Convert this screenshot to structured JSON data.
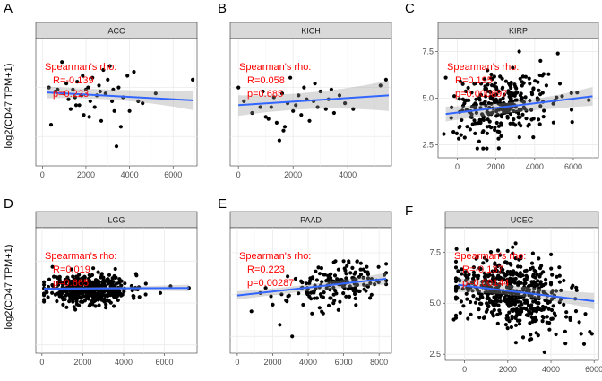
{
  "y_axis_label": "log2(CD47 TPM+1)",
  "colors": {
    "point": "#000000",
    "fit_line": "#3366ff",
    "ci_band": "#999999",
    "annotation": "#ff0000",
    "strip_fill": "#d9d9d9",
    "gridline": "#ebebeb"
  },
  "chart_data": [
    {
      "type": "scatter",
      "letter": "A",
      "title": "ACC",
      "xlim": [
        -300,
        7100
      ],
      "ylim": [
        1.0,
        7.5
      ],
      "x_ticks": [
        0,
        2000,
        4000,
        6000
      ],
      "y_ticks": [],
      "annotation": [
        "Spearman's rho:",
        "R=-0.139",
        "p=0.223"
      ],
      "fit": {
        "x0": 200,
        "y0": 4.75,
        "x1": 6900,
        "y1": 4.35
      },
      "ci": {
        "lower0": 4.45,
        "upper0": 5.05,
        "lowerm": 4.55,
        "upperm": 4.8,
        "lower1": 3.85,
        "upper1": 4.85
      },
      "points": [
        [
          300,
          5.0
        ],
        [
          400,
          3.1
        ],
        [
          600,
          4.8
        ],
        [
          700,
          4.9
        ],
        [
          900,
          6.3
        ],
        [
          1000,
          4.7
        ],
        [
          1100,
          5.2
        ],
        [
          1200,
          4.4
        ],
        [
          1300,
          3.9
        ],
        [
          1400,
          4.9
        ],
        [
          1500,
          4.5
        ],
        [
          1600,
          5.3
        ],
        [
          1700,
          4.1
        ],
        [
          1800,
          4.6
        ],
        [
          1900,
          3.6
        ],
        [
          2000,
          4.9
        ],
        [
          2100,
          5.0
        ],
        [
          2200,
          4.3
        ],
        [
          2300,
          5.5
        ],
        [
          2400,
          4.0
        ],
        [
          2500,
          4.6
        ],
        [
          2600,
          5.1
        ],
        [
          2700,
          3.3
        ],
        [
          2800,
          5.9
        ],
        [
          2900,
          4.7
        ],
        [
          3000,
          5.4
        ],
        [
          3100,
          6.1
        ],
        [
          3200,
          4.3
        ],
        [
          3300,
          3.8
        ],
        [
          3400,
          2.0
        ],
        [
          3500,
          5.0
        ],
        [
          3600,
          3.0
        ],
        [
          3700,
          4.5
        ],
        [
          3900,
          5.6
        ],
        [
          4000,
          3.8
        ],
        [
          4200,
          5.8
        ],
        [
          4400,
          4.3
        ],
        [
          4600,
          4.2
        ],
        [
          5200,
          4.7
        ],
        [
          6900,
          5.4
        ],
        [
          1550,
          4.1
        ],
        [
          2150,
          3.5
        ],
        [
          2650,
          4.8
        ],
        [
          1850,
          5.6
        ],
        [
          3250,
          4.9
        ]
      ]
    },
    {
      "type": "scatter",
      "letter": "B",
      "title": "KICH",
      "xlim": [
        -300,
        5600
      ],
      "ylim": [
        1.0,
        7.5
      ],
      "x_ticks": [
        0,
        2000,
        4000
      ],
      "y_ticks": [],
      "annotation": [
        "Spearman's rho:",
        "R=0.058",
        "p=0.685"
      ],
      "fit": {
        "x0": 0,
        "y0": 4.1,
        "x1": 5500,
        "y1": 4.6
      },
      "ci": {
        "lower0": 3.55,
        "upper0": 4.6,
        "lowerm": 4.15,
        "upperm": 4.55,
        "lower1": 3.8,
        "upper1": 5.35
      },
      "points": [
        [
          0,
          5.0
        ],
        [
          200,
          4.3
        ],
        [
          500,
          3.7
        ],
        [
          800,
          4.0
        ],
        [
          900,
          4.8
        ],
        [
          1000,
          3.5
        ],
        [
          1100,
          3.4
        ],
        [
          1200,
          4.0
        ],
        [
          1300,
          4.5
        ],
        [
          1400,
          3.2
        ],
        [
          1500,
          2.3
        ],
        [
          1600,
          4.7
        ],
        [
          1700,
          3.0
        ],
        [
          1800,
          4.2
        ],
        [
          1900,
          5.5
        ],
        [
          2000,
          3.8
        ],
        [
          2100,
          4.1
        ],
        [
          2200,
          4.6
        ],
        [
          2300,
          3.6
        ],
        [
          2400,
          5.0
        ],
        [
          2500,
          4.4
        ],
        [
          2600,
          3.3
        ],
        [
          2800,
          5.2
        ],
        [
          2900,
          4.0
        ],
        [
          3000,
          4.8
        ],
        [
          3200,
          3.9
        ],
        [
          3300,
          4.4
        ],
        [
          3400,
          4.9
        ],
        [
          3500,
          3.7
        ],
        [
          3700,
          4.6
        ],
        [
          3900,
          4.2
        ],
        [
          4200,
          3.9
        ],
        [
          5200,
          5.1
        ],
        [
          5400,
          5.4
        ],
        [
          1650,
          2.8
        ],
        [
          2750,
          4.3
        ]
      ]
    },
    {
      "type": "scatter",
      "letter": "C",
      "title": "KIRP",
      "xlim": [
        -1000,
        7300
      ],
      "ylim": [
        1.8,
        8.2
      ],
      "x_ticks": [
        0,
        2000,
        4000,
        6000
      ],
      "y_ticks": [
        2.5,
        5.0,
        7.5
      ],
      "annotation": [
        "Spearman's rho:",
        "R=0.195",
        "p=0.000897"
      ],
      "fit": {
        "x0": -600,
        "y0": 4.15,
        "x1": 7000,
        "y1": 5.1
      },
      "ci": {
        "lower0": 3.75,
        "upper0": 4.55,
        "lowerm": 4.35,
        "upperm": 4.6,
        "lower1": 4.6,
        "upper1": 5.6
      },
      "cloud": {
        "n": 290,
        "seed": 7,
        "x_mean": 2200,
        "x_sd": 1200,
        "x_min": -700,
        "x_max": 6800,
        "y_base": 4.3,
        "y_slope": 0.00012,
        "y_sd": 0.85,
        "y_min": 2.3,
        "y_max": 7.6
      },
      "points": [
        [
          -600,
          6.1
        ],
        [
          5200,
          7.4
        ],
        [
          6800,
          4.9
        ],
        [
          4300,
          7.0
        ],
        [
          3200,
          7.5
        ],
        [
          -300,
          4.5
        ],
        [
          6200,
          5.3
        ]
      ]
    },
    {
      "type": "scatter",
      "letter": "D",
      "title": "LGG",
      "xlim": [
        -300,
        7600
      ],
      "ylim": [
        2.0,
        9.5
      ],
      "x_ticks": [
        0,
        2000,
        4000,
        6000
      ],
      "y_ticks": [],
      "annotation": [
        "Spearman's rho:",
        "R=0.019",
        "p=0.665"
      ],
      "fit": {
        "x0": 100,
        "y0": 5.85,
        "x1": 7200,
        "y1": 5.9
      },
      "ci": {
        "lower0": 5.75,
        "upper0": 5.95,
        "lowerm": 5.82,
        "upperm": 5.92,
        "lower1": 5.7,
        "upper1": 6.1
      },
      "cloud": {
        "n": 470,
        "seed": 11,
        "x_mean": 2300,
        "x_sd": 1000,
        "x_min": 100,
        "x_max": 5600,
        "y_base": 5.85,
        "y_slope": 0.0,
        "y_sd": 0.45,
        "y_min": 4.6,
        "y_max": 7.2
      },
      "points": [
        [
          7200,
          5.9
        ],
        [
          6300,
          6.0
        ],
        [
          100,
          5.2
        ],
        [
          5800,
          5.6
        ]
      ]
    },
    {
      "type": "scatter",
      "letter": "E",
      "title": "PAAD",
      "xlim": [
        -400,
        8700
      ],
      "ylim": [
        1.5,
        9.0
      ],
      "x_ticks": [
        0,
        2000,
        4000,
        6000,
        8000
      ],
      "y_ticks": [],
      "annotation": [
        "Spearman's rho:",
        "R=0.223",
        "p=0.00287"
      ],
      "fit": {
        "x0": 0,
        "y0": 4.95,
        "x1": 8400,
        "y1": 5.95
      },
      "ci": {
        "lower0": 4.7,
        "upper0": 5.2,
        "lowerm": 5.3,
        "upperm": 5.5,
        "lower1": 5.6,
        "upper1": 6.3
      },
      "cloud": {
        "n": 170,
        "seed": 23,
        "x_mean": 5600,
        "x_sd": 1300,
        "x_min": 2500,
        "x_max": 8400,
        "y_base": 4.85,
        "y_slope": 0.00013,
        "y_sd": 0.6,
        "y_min": 3.6,
        "y_max": 7.0
      },
      "points": [
        [
          800,
          4.0
        ],
        [
          1300,
          5.1
        ],
        [
          1600,
          5.4
        ],
        [
          2000,
          4.4
        ],
        [
          2400,
          3.2
        ],
        [
          2800,
          4.6
        ],
        [
          3100,
          2.5
        ],
        [
          3600,
          5.8
        ],
        [
          1900,
          4.9
        ]
      ]
    },
    {
      "type": "scatter",
      "letter": "F",
      "title": "UCEC",
      "xlim": [
        -900,
        6200
      ],
      "ylim": [
        2.2,
        8.7
      ],
      "x_ticks": [
        0,
        2000,
        4000,
        6000
      ],
      "y_ticks": [
        2.5,
        5.0,
        7.5
      ],
      "annotation": [
        "Spearman's rho:",
        "R=-0.137",
        "p=0.00144"
      ],
      "fit": {
        "x0": -300,
        "y0": 5.9,
        "x1": 6000,
        "y1": 5.1
      },
      "ci": {
        "lower0": 5.55,
        "upper0": 6.25,
        "lowerm": 5.5,
        "upperm": 5.7,
        "lower1": 4.7,
        "upper1": 5.5
      },
      "cloud": {
        "n": 520,
        "seed": 5,
        "x_mean": 2200,
        "x_sd": 1250,
        "x_min": -400,
        "x_max": 5600,
        "y_base": 5.8,
        "y_slope": -0.00013,
        "y_sd": 0.85,
        "y_min": 3.0,
        "y_max": 8.0
      },
      "points": [
        [
          -500,
          4.2
        ],
        [
          5800,
          3.6
        ],
        [
          5400,
          3.5
        ],
        [
          3700,
          2.6
        ],
        [
          200,
          6.4
        ],
        [
          5900,
          3.5
        ]
      ]
    }
  ]
}
